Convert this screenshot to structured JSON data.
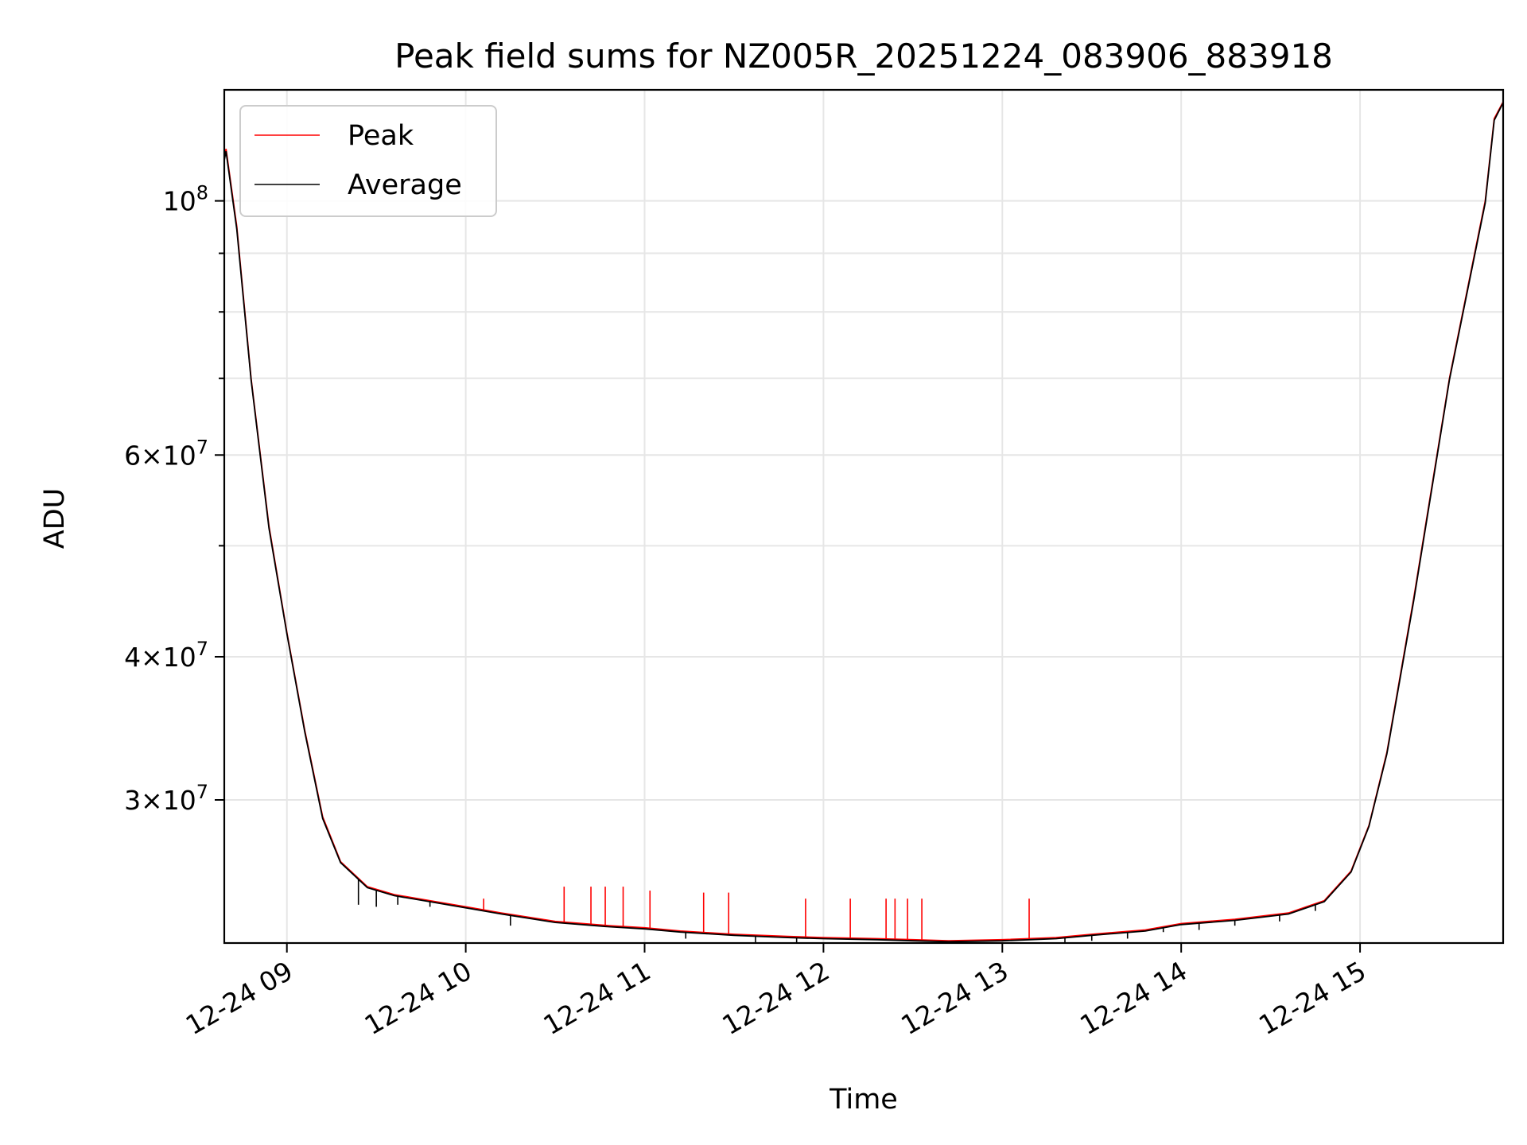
{
  "chart_data": {
    "type": "line",
    "title": "Peak field sums for NZ005R_20251224_083906_883918",
    "xlabel": "Time",
    "ylabel": "ADU",
    "y_scale": "log",
    "grid": true,
    "legend_location": "upper-left",
    "xlim_hours": [
      8.65,
      15.8
    ],
    "ylim": [
      22500000,
      125000000
    ],
    "x_ticks": [
      {
        "value": 9,
        "label": "12-24 09"
      },
      {
        "value": 10,
        "label": "12-24 10"
      },
      {
        "value": 11,
        "label": "12-24 11"
      },
      {
        "value": 12,
        "label": "12-24 12"
      },
      {
        "value": 13,
        "label": "12-24 13"
      },
      {
        "value": 14,
        "label": "12-24 14"
      },
      {
        "value": 15,
        "label": "12-24 15"
      }
    ],
    "y_major_ticks": [
      {
        "value": 30000000,
        "mantissa": "3",
        "exponent": "7"
      },
      {
        "value": 40000000,
        "mantissa": "4",
        "exponent": "7"
      },
      {
        "value": 60000000,
        "mantissa": "6",
        "exponent": "7"
      },
      {
        "value": 100000000,
        "mantissa": "",
        "exponent": "8"
      }
    ],
    "y_minor_ticks": [
      50000000,
      70000000,
      80000000,
      90000000
    ],
    "series": [
      {
        "name": "Peak",
        "color": "#ff0000",
        "x_hours": [
          8.65,
          8.66,
          8.72,
          8.8,
          8.9,
          9.0,
          9.1,
          9.2,
          9.3,
          9.45,
          9.6,
          9.8,
          10.0,
          10.2,
          10.5,
          10.8,
          11.0,
          11.2,
          11.5,
          11.8,
          12.0,
          12.3,
          12.5,
          12.7,
          13.0,
          13.3,
          13.5,
          13.8,
          14.0,
          14.3,
          14.6,
          14.8,
          14.95,
          15.05,
          15.15,
          15.3,
          15.5,
          15.7,
          15.75,
          15.8
        ],
        "values": [
          109000000,
          111000000,
          95000000,
          70000000,
          52000000,
          42000000,
          34500000,
          29000000,
          26500000,
          25200000,
          24800000,
          24500000,
          24200000,
          23900000,
          23500000,
          23300000,
          23200000,
          23050000,
          22900000,
          22800000,
          22750000,
          22700000,
          22650000,
          22600000,
          22650000,
          22750000,
          22900000,
          23100000,
          23400000,
          23600000,
          23900000,
          24500000,
          26000000,
          28500000,
          33000000,
          45000000,
          70000000,
          100000000,
          118000000,
          122000000
        ],
        "spikes": [
          {
            "x": 10.1,
            "value": 24600000
          },
          {
            "x": 10.55,
            "value": 25200000
          },
          {
            "x": 10.7,
            "value": 25200000
          },
          {
            "x": 10.78,
            "value": 25200000
          },
          {
            "x": 10.88,
            "value": 25200000
          },
          {
            "x": 11.03,
            "value": 25000000
          },
          {
            "x": 11.33,
            "value": 24900000
          },
          {
            "x": 11.47,
            "value": 24900000
          },
          {
            "x": 11.9,
            "value": 24600000
          },
          {
            "x": 12.15,
            "value": 24600000
          },
          {
            "x": 12.35,
            "value": 24600000
          },
          {
            "x": 12.4,
            "value": 24600000
          },
          {
            "x": 12.47,
            "value": 24600000
          },
          {
            "x": 12.55,
            "value": 24600000
          },
          {
            "x": 13.15,
            "value": 24600000
          }
        ]
      },
      {
        "name": "Average",
        "color": "#000000",
        "x_hours": [
          8.65,
          8.66,
          8.72,
          8.8,
          8.9,
          9.0,
          9.1,
          9.2,
          9.3,
          9.45,
          9.6,
          9.8,
          10.0,
          10.2,
          10.5,
          10.8,
          11.0,
          11.2,
          11.5,
          11.8,
          12.0,
          12.3,
          12.5,
          12.7,
          13.0,
          13.3,
          13.5,
          13.8,
          14.0,
          14.3,
          14.6,
          14.8,
          14.95,
          15.05,
          15.15,
          15.3,
          15.5,
          15.7,
          15.75,
          15.8
        ],
        "values": [
          108500000,
          110500000,
          94500000,
          69800000,
          51800000,
          41900000,
          34400000,
          28900000,
          26450000,
          25150000,
          24750000,
          24450000,
          24150000,
          23850000,
          23450000,
          23250000,
          23150000,
          23000000,
          22850000,
          22750000,
          22700000,
          22650000,
          22600000,
          22560000,
          22600000,
          22700000,
          22850000,
          23050000,
          23350000,
          23550000,
          23850000,
          24450000,
          25950000,
          28450000,
          32900000,
          44800000,
          69800000,
          99600000,
          117600000,
          121800000
        ],
        "dips": [
          {
            "x": 9.4,
            "value": 24300000
          },
          {
            "x": 9.5,
            "value": 24200000
          },
          {
            "x": 9.62,
            "value": 24300000
          },
          {
            "x": 9.8,
            "value": 24200000
          },
          {
            "x": 10.25,
            "value": 23300000
          },
          {
            "x": 11.23,
            "value": 22700000
          },
          {
            "x": 11.62,
            "value": 22500000
          },
          {
            "x": 11.85,
            "value": 22400000
          },
          {
            "x": 13.35,
            "value": 22500000
          },
          {
            "x": 13.5,
            "value": 22600000
          },
          {
            "x": 13.7,
            "value": 22700000
          },
          {
            "x": 13.9,
            "value": 23000000
          },
          {
            "x": 14.1,
            "value": 23100000
          },
          {
            "x": 14.3,
            "value": 23300000
          },
          {
            "x": 14.55,
            "value": 23500000
          },
          {
            "x": 14.75,
            "value": 24000000
          }
        ]
      }
    ]
  }
}
